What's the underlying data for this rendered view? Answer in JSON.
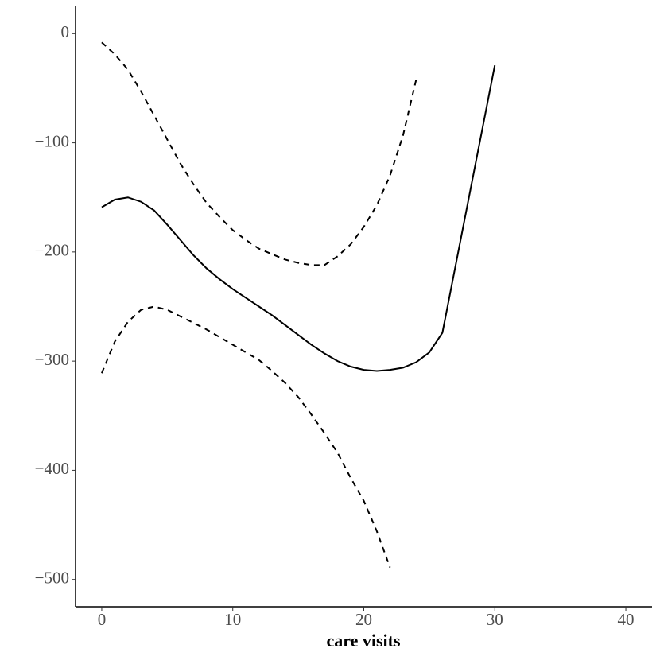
{
  "chart_data": {
    "type": "line",
    "x_label": "care visits",
    "x": [
      0,
      1,
      2,
      3,
      4,
      5,
      6,
      7,
      8,
      9,
      10,
      11,
      12,
      13,
      14,
      15,
      16,
      17,
      18,
      19,
      20,
      21,
      22,
      23,
      24,
      25,
      26,
      30
    ],
    "series": [
      {
        "color": "#000000",
        "line_style": "solid",
        "values": [
          -159,
          -152,
          -150,
          -154,
          -162,
          -175,
          -189,
          -203,
          -215,
          -225,
          -234,
          -242,
          -250,
          -258,
          -267,
          -276,
          -285,
          -293,
          -300,
          -305,
          -308,
          -309,
          -308,
          -306,
          -301,
          -292,
          -274,
          -29
        ]
      },
      {
        "color": "#000000",
        "line_style": "dashed",
        "values": [
          -8,
          -19,
          -33,
          -53,
          -75,
          -97,
          -119,
          -138,
          -155,
          -168,
          -180,
          -189,
          -197,
          -202,
          -207,
          -210,
          -212,
          -212,
          -204,
          -193,
          -177,
          -157,
          -130,
          -93,
          -42,
          null,
          null,
          null
        ]
      },
      {
        "color": "#000000",
        "line_style": "dashed",
        "values": [
          -311,
          -282,
          -264,
          -253,
          -250,
          -253,
          -259,
          -265,
          -271,
          -278,
          -285,
          -292,
          -299,
          -309,
          -320,
          -333,
          -349,
          -366,
          -384,
          -407,
          -428,
          -456,
          -489,
          null,
          null,
          null,
          null,
          null
        ]
      }
    ],
    "xlim": [
      -2,
      42
    ],
    "xticks": [
      0,
      10,
      20,
      30,
      40
    ],
    "ylim": [
      -525,
      25
    ],
    "yticks": [
      {
        "value": -500,
        "label": "−500"
      },
      {
        "value": -400,
        "label": "−400"
      },
      {
        "value": -300,
        "label": "−300"
      },
      {
        "value": -200,
        "label": "−200"
      },
      {
        "value": -100,
        "label": "−100"
      },
      0
    ],
    "grid": false
  }
}
